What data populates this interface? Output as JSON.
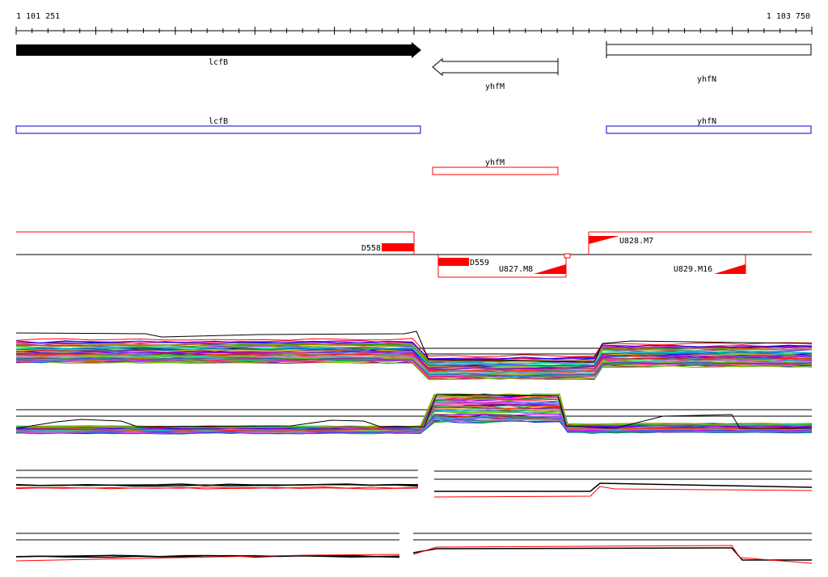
{
  "coordinate_axis": {
    "start_label": "1 101 251",
    "end_label": "1 103 750"
  },
  "genes": {
    "lcfB": "lcfB",
    "yhfM": "yhfM",
    "yhfN": "yhfN"
  },
  "features": {
    "d558": "D558",
    "d559": "D559",
    "u827": "U827.M8",
    "u828": "U828.M7",
    "u829": "U829.M16"
  },
  "colors": {
    "forward_cds": "#000000",
    "annotation_blue": "#0000cc",
    "annotation_red": "#ff0000",
    "axis": "#000000",
    "trace_palette": [
      "#ff0000",
      "#00aa00",
      "#0000ff",
      "#ff00ff",
      "#00cccc",
      "#ffaa00",
      "#8800ff",
      "#00ff66",
      "#cc0066",
      "#999900",
      "#ff66cc",
      "#3399ff",
      "#66cc00",
      "#ff3300",
      "#0066cc"
    ]
  },
  "icons": {
    "forward_arrow": "filled-right-arrow-icon",
    "reverse_arrow": "outline-left-arrow-icon",
    "box": "outline-box-icon"
  }
}
